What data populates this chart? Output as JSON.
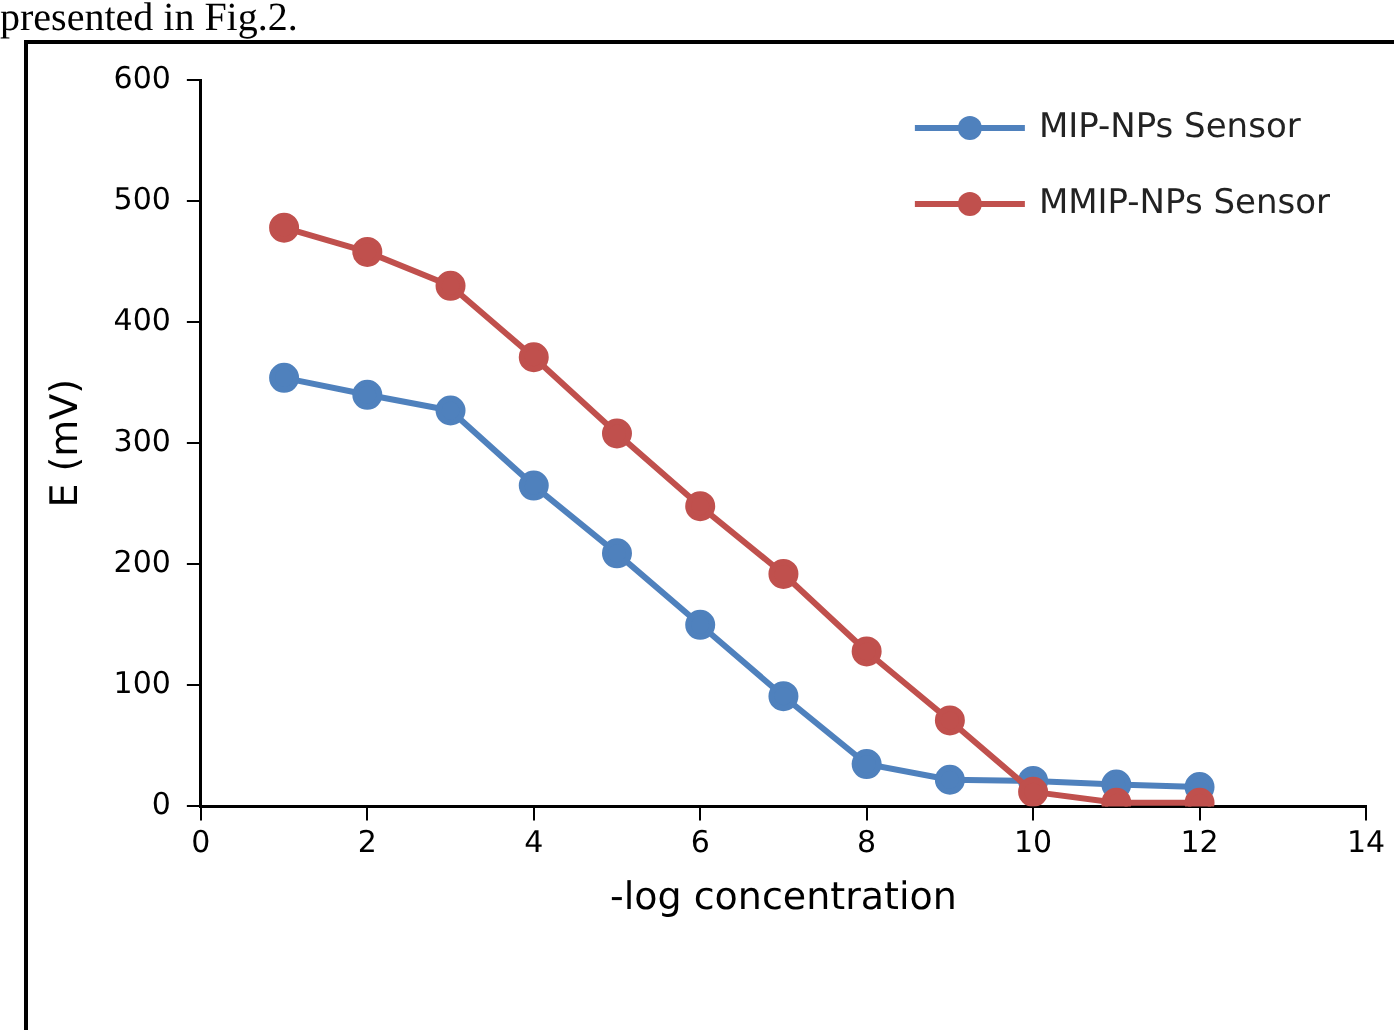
{
  "chart_data": {
    "type": "line",
    "xlabel": "-log concentration",
    "ylabel": "E (mV)",
    "annotations": [
      "presented in Fig.2."
    ],
    "x": [
      1,
      2,
      3,
      4,
      5,
      6,
      7,
      8,
      9,
      10,
      11,
      12
    ],
    "series": [
      {
        "name": "MIP-NPs Sensor",
        "color": "#4f81bd",
        "values": [
          354,
          340,
          327,
          265,
          209,
          150,
          91,
          35,
          22,
          21,
          18,
          16
        ]
      },
      {
        "name": "MMIP-NPs Sensor",
        "color": "#c0504d",
        "values": [
          478,
          458,
          430,
          371,
          308,
          248,
          192,
          128,
          71,
          12,
          3,
          3
        ]
      }
    ],
    "xlim": [
      0,
      14
    ],
    "xticks": [
      0,
      2,
      4,
      6,
      8,
      10,
      12,
      14
    ],
    "ylim": [
      0,
      600
    ],
    "yticks": [
      0,
      100,
      200,
      300,
      400,
      500,
      600
    ],
    "grid": false,
    "legend": "top right",
    "marker": "circle",
    "line_style": "solid"
  }
}
